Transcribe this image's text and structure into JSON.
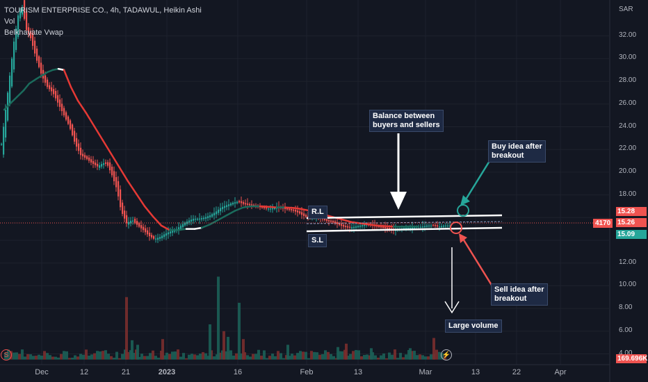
{
  "header": {
    "symbol_line": "TOURISM ENTERPRISE CO., 4h, TADAWUL, Heikin Ashi",
    "vol_label": "Vol",
    "indicator_label": "Belkhayate Vwap"
  },
  "axis": {
    "currency": "SAR",
    "y_ticks": [
      "32.00",
      "30.00",
      "28.00",
      "26.00",
      "24.00",
      "22.00",
      "20.00",
      "18.00",
      "12.00",
      "10.00",
      "8.00",
      "6.00",
      "4.00"
    ],
    "x_ticks": [
      "Dec",
      "12",
      "21",
      "2023",
      "16",
      "Feb",
      "13",
      "Mar",
      "13",
      "22",
      "Apr"
    ]
  },
  "price_tags": {
    "top": "15.28",
    "last": "15.26",
    "bottom": "15.09",
    "countdown": "4170",
    "volume": "169.696K"
  },
  "annotations": {
    "balance": "Balance between\nbuyers and sellers",
    "buy": "Buy idea after\nbreakout",
    "sell": "Sell idea after\nbreakout",
    "volume": "Large volume",
    "rl": "R.L",
    "sl": "S.L"
  },
  "icons": {
    "left": "S",
    "right": "⚡"
  },
  "colors": {
    "background": "#131722",
    "up": "#26a69a",
    "down": "#ef5350",
    "vwap_down": "#e53935",
    "vwap_up": "#1b6b5c",
    "tag_top": "#ef5350",
    "tag_last": "#ef5350",
    "tag_bottom": "#26a69a"
  },
  "chart_data": {
    "type": "candlestick",
    "title": "TOURISM ENTERPRISE CO., 4h, TADAWUL, Heikin Ashi",
    "ylabel": "SAR",
    "ylim": [
      3.5,
      34
    ],
    "x_ticks": [
      "Dec",
      "12",
      "21",
      "2023",
      "16",
      "Feb",
      "13",
      "Mar",
      "13",
      "22",
      "Apr"
    ],
    "price_path": [
      {
        "x": 0,
        "v": 22.5
      },
      {
        "x": 6,
        "v": 25.5
      },
      {
        "x": 12,
        "v": 28.5
      },
      {
        "x": 18,
        "v": 31.5
      },
      {
        "x": 24,
        "v": 33.8
      },
      {
        "x": 30,
        "v": 34.5
      },
      {
        "x": 36,
        "v": 32.5
      },
      {
        "x": 42,
        "v": 31.8
      },
      {
        "x": 50,
        "v": 30
      },
      {
        "x": 58,
        "v": 28.5
      },
      {
        "x": 66,
        "v": 27.5
      },
      {
        "x": 74,
        "v": 27
      },
      {
        "x": 82,
        "v": 26
      },
      {
        "x": 90,
        "v": 25
      },
      {
        "x": 98,
        "v": 24
      },
      {
        "x": 106,
        "v": 22.5
      },
      {
        "x": 114,
        "v": 21.5
      },
      {
        "x": 122,
        "v": 21.2
      },
      {
        "x": 130,
        "v": 20.8
      },
      {
        "x": 138,
        "v": 20.5
      },
      {
        "x": 146,
        "v": 20.8
      },
      {
        "x": 152,
        "v": 20.7
      },
      {
        "x": 158,
        "v": 19.9
      },
      {
        "x": 166,
        "v": 18.5
      },
      {
        "x": 172,
        "v": 16.6
      },
      {
        "x": 180,
        "v": 15.5
      },
      {
        "x": 188,
        "v": 15.8
      },
      {
        "x": 196,
        "v": 15.3
      },
      {
        "x": 204,
        "v": 14.9
      },
      {
        "x": 212,
        "v": 14.4
      },
      {
        "x": 220,
        "v": 14.1
      },
      {
        "x": 228,
        "v": 14.3
      },
      {
        "x": 236,
        "v": 14.6
      },
      {
        "x": 244,
        "v": 14.8
      },
      {
        "x": 252,
        "v": 15
      },
      {
        "x": 260,
        "v": 15.4
      },
      {
        "x": 268,
        "v": 15.7
      },
      {
        "x": 276,
        "v": 15.9
      },
      {
        "x": 284,
        "v": 15.9
      },
      {
        "x": 292,
        "v": 16
      },
      {
        "x": 300,
        "v": 16.2
      },
      {
        "x": 308,
        "v": 16.5
      },
      {
        "x": 316,
        "v": 16.9
      },
      {
        "x": 324,
        "v": 17.1
      },
      {
        "x": 332,
        "v": 17.3
      },
      {
        "x": 340,
        "v": 17.4
      },
      {
        "x": 348,
        "v": 17.2
      },
      {
        "x": 356,
        "v": 17.1
      },
      {
        "x": 364,
        "v": 17
      },
      {
        "x": 372,
        "v": 16.9
      },
      {
        "x": 380,
        "v": 16.8
      },
      {
        "x": 388,
        "v": 16.8
      },
      {
        "x": 396,
        "v": 16.9
      },
      {
        "x": 404,
        "v": 16.8
      },
      {
        "x": 412,
        "v": 16.7
      },
      {
        "x": 420,
        "v": 16.6
      },
      {
        "x": 428,
        "v": 16.4
      },
      {
        "x": 436,
        "v": 16.1
      },
      {
        "x": 444,
        "v": 16
      },
      {
        "x": 452,
        "v": 16.1
      },
      {
        "x": 460,
        "v": 15.9
      },
      {
        "x": 468,
        "v": 15.7
      },
      {
        "x": 476,
        "v": 15.6
      },
      {
        "x": 484,
        "v": 15.4
      },
      {
        "x": 492,
        "v": 15.2
      },
      {
        "x": 500,
        "v": 15.1
      },
      {
        "x": 508,
        "v": 15.2
      },
      {
        "x": 516,
        "v": 15.3
      },
      {
        "x": 524,
        "v": 15.4
      },
      {
        "x": 532,
        "v": 15.3
      },
      {
        "x": 540,
        "v": 15.2
      },
      {
        "x": 548,
        "v": 15.1
      },
      {
        "x": 556,
        "v": 15
      },
      {
        "x": 564,
        "v": 14.9
      },
      {
        "x": 572,
        "v": 15
      },
      {
        "x": 580,
        "v": 15.1
      },
      {
        "x": 588,
        "v": 15.1
      },
      {
        "x": 596,
        "v": 15.2
      },
      {
        "x": 604,
        "v": 15.2
      },
      {
        "x": 612,
        "v": 15.3
      },
      {
        "x": 620,
        "v": 15.3
      },
      {
        "x": 628,
        "v": 15.2
      },
      {
        "x": 636,
        "v": 15.3
      },
      {
        "x": 644,
        "v": 15.3
      }
    ],
    "vwap_line": [
      {
        "x": 4,
        "v": 25.5
      },
      {
        "x": 12,
        "v": 26
      },
      {
        "x": 22,
        "v": 26.6
      },
      {
        "x": 32,
        "v": 27.2
      },
      {
        "x": 40,
        "v": 27.8
      },
      {
        "x": 50,
        "v": 28.2
      },
      {
        "x": 58,
        "v": 28.5
      },
      {
        "x": 66,
        "v": 28.8
      },
      {
        "x": 74,
        "v": 29
      },
      {
        "x": 82,
        "v": 29.1
      },
      {
        "x": 90,
        "v": 29
      },
      {
        "x": 100,
        "v": 27.5
      },
      {
        "x": 110,
        "v": 26.3
      },
      {
        "x": 122,
        "v": 25.2
      },
      {
        "x": 134,
        "v": 24
      },
      {
        "x": 146,
        "v": 22.8
      },
      {
        "x": 158,
        "v": 21.6
      },
      {
        "x": 170,
        "v": 20.4
      },
      {
        "x": 182,
        "v": 19.2
      },
      {
        "x": 194,
        "v": 18.1
      },
      {
        "x": 206,
        "v": 17
      },
      {
        "x": 218,
        "v": 16.1
      },
      {
        "x": 230,
        "v": 15.3
      },
      {
        "x": 242,
        "v": 14.9
      },
      {
        "x": 254,
        "v": 14.9
      },
      {
        "x": 266,
        "v": 15
      },
      {
        "x": 278,
        "v": 15
      },
      {
        "x": 288,
        "v": 15.1
      },
      {
        "x": 300,
        "v": 15.4
      },
      {
        "x": 312,
        "v": 15.8
      },
      {
        "x": 324,
        "v": 16.2
      },
      {
        "x": 336,
        "v": 16.6
      },
      {
        "x": 348,
        "v": 16.9
      },
      {
        "x": 360,
        "v": 17
      },
      {
        "x": 372,
        "v": 17
      },
      {
        "x": 384,
        "v": 16.95
      },
      {
        "x": 396,
        "v": 16.9
      },
      {
        "x": 408,
        "v": 16.9
      },
      {
        "x": 420,
        "v": 16.85
      },
      {
        "x": 432,
        "v": 16.75
      },
      {
        "x": 444,
        "v": 16.6
      },
      {
        "x": 456,
        "v": 16.4
      },
      {
        "x": 468,
        "v": 16.2
      },
      {
        "x": 480,
        "v": 16
      },
      {
        "x": 492,
        "v": 15.8
      },
      {
        "x": 504,
        "v": 15.6
      },
      {
        "x": 516,
        "v": 15.5
      },
      {
        "x": 528,
        "v": 15.4
      },
      {
        "x": 540,
        "v": 15.3
      },
      {
        "x": 552,
        "v": 15.25
      },
      {
        "x": 564,
        "v": 15.2
      },
      {
        "x": 576,
        "v": 15.2
      },
      {
        "x": 588,
        "v": 15.2
      },
      {
        "x": 600,
        "v": 15.2
      }
    ],
    "levels": {
      "resistance": 15.28,
      "last": 15.26,
      "support": 15.09
    },
    "volume_bars": [
      {
        "x": 180,
        "v": 9.0
      },
      {
        "x": 188,
        "v": 5.2
      },
      {
        "x": 196,
        "v": 4.8
      },
      {
        "x": 232,
        "v": 5.3
      },
      {
        "x": 300,
        "v": 6.6
      },
      {
        "x": 312,
        "v": 10.8
      },
      {
        "x": 320,
        "v": 6.0
      },
      {
        "x": 326,
        "v": 5.5
      },
      {
        "x": 342,
        "v": 8.5
      },
      {
        "x": 348,
        "v": 5.3
      },
      {
        "x": 412,
        "v": 4.8
      },
      {
        "x": 484,
        "v": 4.6
      },
      {
        "x": 496,
        "v": 4.9
      },
      {
        "x": 532,
        "v": 4.5
      },
      {
        "x": 588,
        "v": 4.5
      },
      {
        "x": 622,
        "v": 5.4
      }
    ]
  }
}
